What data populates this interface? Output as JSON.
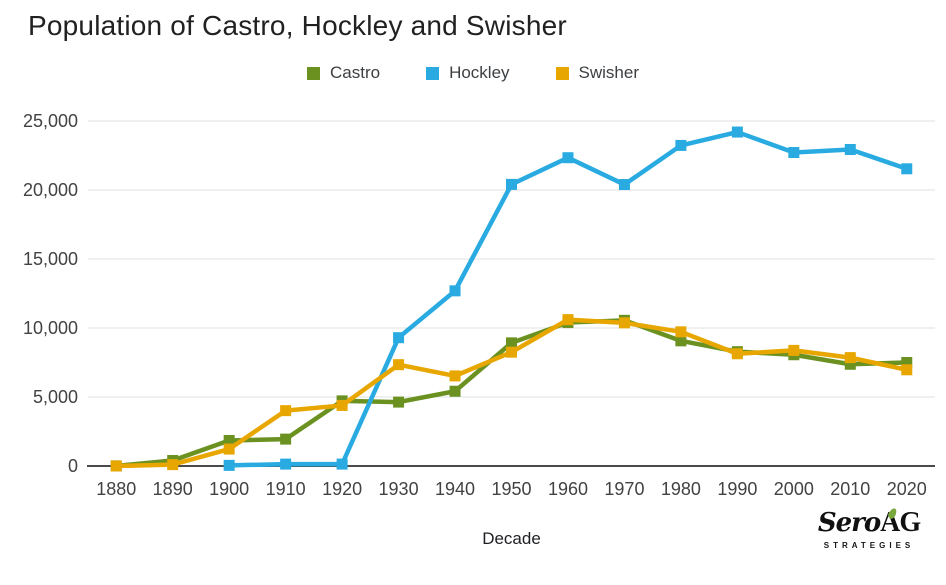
{
  "chart_data": {
    "type": "line",
    "title": "Population of Castro, Hockley and Swisher",
    "xlabel": "Decade",
    "ylabel": "",
    "categories": [
      "1880",
      "1890",
      "1900",
      "1910",
      "1920",
      "1930",
      "1940",
      "1950",
      "1960",
      "1970",
      "1980",
      "1990",
      "2000",
      "2010",
      "2020"
    ],
    "series": [
      {
        "name": "Castro",
        "color": "#6b9221",
        "values": [
          9,
          400,
          1850,
          1948,
          4720,
          4631,
          5417,
          8923,
          10394,
          10556,
          9070,
          8285,
          8062,
          7371,
          7500
        ]
      },
      {
        "name": "Hockley",
        "color": "#29abe2",
        "values": [
          null,
          null,
          44,
          137,
          137,
          9298,
          12693,
          20407,
          22340,
          20396,
          23230,
          24199,
          22716,
          22935,
          21537
        ]
      },
      {
        "name": "Swisher",
        "color": "#e8a700",
        "values": [
          4,
          100,
          1227,
          4012,
          4388,
          7343,
          6528,
          8249,
          10607,
          10373,
          9723,
          8133,
          8378,
          7854,
          6971
        ]
      }
    ],
    "ylim": [
      0,
      25000
    ],
    "yticks": [
      0,
      5000,
      10000,
      15000,
      20000,
      25000
    ],
    "ytick_labels": [
      "0",
      "5,000",
      "10,000",
      "15,000",
      "20,000",
      "25,000"
    ],
    "grid": true,
    "legend_position": "top",
    "marker": "square"
  },
  "style_colors": {
    "title_text": "#212121",
    "tick_text": "#424242",
    "gridline": "#e2e2e2",
    "axis_line": "#4a4a4a",
    "background": "#ffffff"
  },
  "logo": {
    "brand_script": "Sero",
    "brand_caps": "AG",
    "tagline": "STRATEGIES",
    "accent_color": "#7aa83d"
  }
}
